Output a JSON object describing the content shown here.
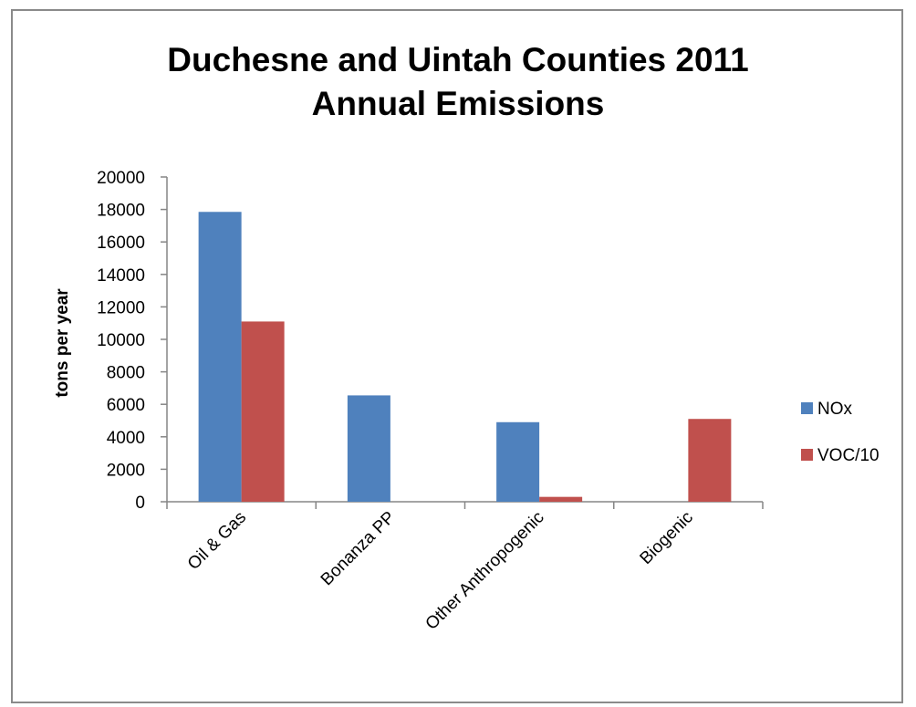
{
  "chart_data": {
    "type": "bar",
    "title_line1": "Duchesne and Uintah Counties 2011",
    "title_line2": "Annual Emissions",
    "xlabel": "",
    "ylabel": "tons per year",
    "categories": [
      "Oil & Gas",
      "Bonanza PP",
      "Other Anthropogenic",
      "Biogenic"
    ],
    "series": [
      {
        "name": "NOx",
        "color": "#4f81bd",
        "values": [
          17850,
          6550,
          4900,
          0
        ]
      },
      {
        "name": "VOC/10",
        "color": "#c0504d",
        "values": [
          11100,
          0,
          300,
          5100
        ]
      }
    ],
    "ylim": [
      0,
      20000
    ],
    "yticks": [
      "0",
      "2000",
      "4000",
      "6000",
      "8000",
      "10000",
      "12000",
      "14000",
      "16000",
      "18000",
      "20000"
    ],
    "grid": false,
    "legend_position": "right"
  }
}
